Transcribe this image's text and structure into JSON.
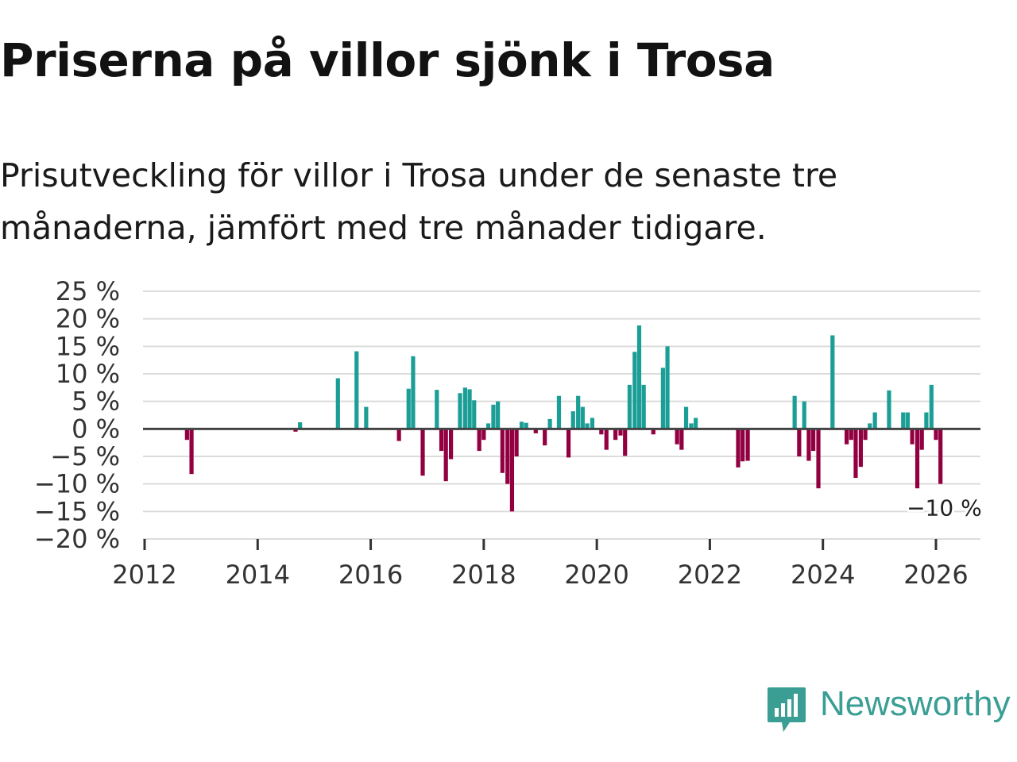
{
  "title": "Priserna på villor sjönk i Trosa",
  "subtitle": "Prisutveckling för villor i Trosa under de senaste tre månaderna, jämfört med tre månader tidigare.",
  "brand": {
    "name": "Newsworthy",
    "color": "#3a9e94",
    "icon": "newsworthy-logo-icon"
  },
  "chart_data": {
    "type": "bar",
    "title": "Priserna på villor sjönk i Trosa",
    "xlabel": "",
    "ylabel": "",
    "ylim": [
      -20,
      25
    ],
    "yticks": [
      25,
      20,
      15,
      10,
      5,
      0,
      -5,
      -10,
      -15,
      -20
    ],
    "ytick_labels": [
      "25 %",
      "20 %",
      "15 %",
      "10 %",
      "5 %",
      "0 %",
      "−5 %",
      "−10 %",
      "−15 %",
      "−20 %"
    ],
    "xlim": [
      2012,
      2026.8
    ],
    "xticks": [
      "2012",
      "2014",
      "2016",
      "2018",
      "2020",
      "2022",
      "2024",
      "2026"
    ],
    "grid": true,
    "colors": {
      "positive": "#1b9e96",
      "negative": "#920041",
      "grid": "#dcdcdc",
      "zero": "#444444"
    },
    "last_label": "−10 %",
    "series": [
      {
        "name": "Prisutveckling",
        "x": [
          2012.75,
          2012.83,
          2014.67,
          2014.75,
          2015.42,
          2015.75,
          2015.92,
          2016.5,
          2016.67,
          2016.75,
          2016.92,
          2017.17,
          2017.25,
          2017.33,
          2017.42,
          2017.58,
          2017.67,
          2017.75,
          2017.83,
          2017.92,
          2018.0,
          2018.08,
          2018.17,
          2018.25,
          2018.33,
          2018.42,
          2018.5,
          2018.58,
          2018.67,
          2018.75,
          2018.92,
          2019.08,
          2019.17,
          2019.33,
          2019.5,
          2019.58,
          2019.67,
          2019.75,
          2019.83,
          2019.92,
          2020.08,
          2020.17,
          2020.33,
          2020.42,
          2020.5,
          2020.58,
          2020.67,
          2020.75,
          2020.83,
          2021.0,
          2021.17,
          2021.25,
          2021.42,
          2021.5,
          2021.58,
          2021.67,
          2021.75,
          2022.5,
          2022.58,
          2022.67,
          2023.5,
          2023.58,
          2023.67,
          2023.75,
          2023.83,
          2023.92,
          2024.17,
          2024.42,
          2024.5,
          2024.58,
          2024.67,
          2024.75,
          2024.83,
          2024.92,
          2025.17,
          2025.42,
          2025.5,
          2025.58,
          2025.67,
          2025.75,
          2025.83,
          2025.92,
          2026.0,
          2026.08
        ],
        "values": [
          -2,
          -8.2,
          -0.5,
          1.2,
          9.2,
          14.1,
          4,
          -2.2,
          7.3,
          13.2,
          -8.5,
          7.1,
          -4,
          -9.5,
          -5.5,
          6.5,
          7.5,
          7.2,
          5.2,
          -4,
          -2,
          1,
          4.4,
          5,
          -8,
          -10,
          -15,
          -5,
          1.3,
          1.1,
          -0.8,
          -3,
          1.8,
          6,
          -5.2,
          3.2,
          6,
          4,
          1,
          2,
          -1,
          -3.8,
          -2,
          -1.2,
          -4.9,
          8,
          14,
          18.8,
          8,
          -1,
          11.1,
          15,
          -2.8,
          -3.8,
          4,
          1,
          2,
          -7,
          -5.9,
          -5.8,
          6,
          -5,
          5,
          -5.8,
          -4,
          -10.8,
          17,
          -2.8,
          -2,
          -8.9,
          -6.9,
          -2,
          1,
          3,
          7,
          3,
          3,
          -2.8,
          -10.8,
          -3.8,
          3,
          8,
          -2,
          -10
        ]
      }
    ]
  }
}
